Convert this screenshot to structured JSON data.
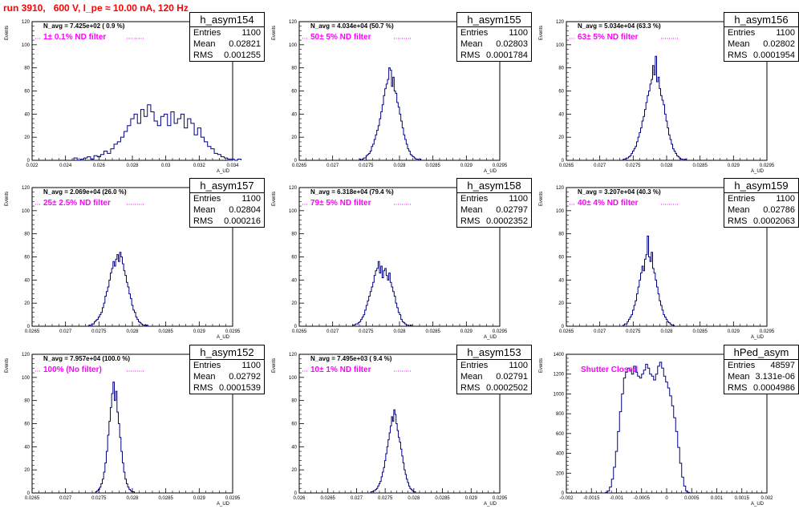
{
  "page_title": "run 3910,   600 V, I_pe ≈ 10.00 nA, 120 Hz",
  "colors": {
    "title": "#ff0000",
    "hist": "#000080",
    "filter_label": "#ff00ff",
    "dotted": "#ff00ff"
  },
  "chart_data": [
    {
      "type": "histogram",
      "name": "h_asym154",
      "stats": {
        "entries_label": "Entries",
        "entries": "1100",
        "mean_label": "Mean",
        "mean": "0.02821",
        "rms_label": "RMS",
        "rms": "0.001255"
      },
      "n_avg_text": "N_avg = 7.425e+02 ( 0.9 %)",
      "filter_text": "1± 0.1% ND filter",
      "xlim": [
        0.022,
        0.034
      ],
      "ylim": [
        0,
        120
      ],
      "xticks": [
        "0.022",
        "0.024",
        "0.026",
        "0.028",
        "0.03",
        "0.032",
        "0.034"
      ],
      "yticks": [
        "0",
        "20",
        "40",
        "60",
        "80",
        "100",
        "120"
      ],
      "xlabel": "A_UD",
      "ylabel": "Events",
      "bins": {
        "start": 0.0245,
        "width": 0.0002,
        "values": [
          2,
          0,
          1,
          2,
          3,
          1,
          4,
          3,
          5,
          8,
          6,
          10,
          14,
          16,
          20,
          25,
          30,
          36,
          40,
          32,
          44,
          38,
          48,
          42,
          34,
          30,
          38,
          40,
          30,
          42,
          32,
          36,
          40,
          28,
          36,
          32,
          22,
          28,
          20,
          16,
          12,
          10,
          6,
          5,
          3,
          2,
          1,
          1,
          0,
          1
        ]
      }
    },
    {
      "type": "histogram",
      "name": "h_asym155",
      "stats": {
        "entries_label": "Entries",
        "entries": "1100",
        "mean_label": "Mean",
        "mean": "0.02803",
        "rms_label": "RMS",
        "rms": "0.0001784"
      },
      "n_avg_text": "N_avg = 4.034e+04 (50.7 %)",
      "filter_text": "50± 5% ND filter",
      "xlim": [
        0.0265,
        0.0295
      ],
      "ylim": [
        0,
        120
      ],
      "xticks": [
        "0.0265",
        "0.027",
        "0.0275",
        "0.028",
        "0.0285",
        "0.029",
        "0.0295"
      ],
      "yticks": [
        "0",
        "20",
        "40",
        "60",
        "80",
        "100",
        "120"
      ],
      "xlabel": "A_UD",
      "ylabel": "Events",
      "bins": {
        "start": 0.0274,
        "width": 2e-05,
        "values": [
          1,
          0,
          1,
          2,
          2,
          4,
          5,
          6,
          8,
          12,
          14,
          18,
          22,
          26,
          30,
          36,
          42,
          48,
          56,
          62,
          66,
          70,
          80,
          78,
          64,
          72,
          60,
          58,
          50,
          46,
          40,
          34,
          28,
          22,
          18,
          14,
          10,
          8,
          5,
          4,
          3,
          2,
          1,
          1,
          0,
          1
        ]
      }
    },
    {
      "type": "histogram",
      "name": "h_asym156",
      "stats": {
        "entries_label": "Entries",
        "entries": "1100",
        "mean_label": "Mean",
        "mean": "0.02802",
        "rms_label": "RMS",
        "rms": "0.0001954"
      },
      "n_avg_text": "N_avg = 5.034e+04 (63.3 %)",
      "filter_text": "63± 5% ND filter",
      "xlim": [
        0.0265,
        0.0295
      ],
      "ylim": [
        0,
        120
      ],
      "xticks": [
        "0.0265",
        "0.027",
        "0.0275",
        "0.028",
        "0.0285",
        "0.029",
        "0.0295"
      ],
      "yticks": [
        "0",
        "20",
        "40",
        "60",
        "80",
        "100",
        "120"
      ],
      "xlabel": "A_UD",
      "ylabel": "Events",
      "bins": {
        "start": 0.02735,
        "width": 2e-05,
        "values": [
          1,
          1,
          2,
          2,
          3,
          4,
          6,
          8,
          10,
          12,
          16,
          20,
          24,
          28,
          34,
          38,
          44,
          50,
          56,
          60,
          66,
          70,
          82,
          74,
          90,
          68,
          72,
          62,
          56,
          52,
          48,
          40,
          34,
          28,
          22,
          18,
          14,
          10,
          8,
          6,
          4,
          3,
          2,
          1,
          1,
          0,
          1
        ]
      }
    },
    {
      "type": "histogram",
      "name": "h_asym157",
      "stats": {
        "entries_label": "Entries",
        "entries": "1100",
        "mean_label": "Mean",
        "mean": "0.02804",
        "rms_label": "RMS",
        "rms": "0.000216"
      },
      "n_avg_text": "N_avg = 2.069e+04 (26.0 %)",
      "filter_text": "25± 2.5% ND filter",
      "xlim": [
        0.0265,
        0.0295
      ],
      "ylim": [
        0,
        120
      ],
      "xticks": [
        "0.0265",
        "0.027",
        "0.0275",
        "0.028",
        "0.0285",
        "0.029",
        "0.0295"
      ],
      "yticks": [
        "0",
        "20",
        "40",
        "60",
        "80",
        "100",
        "120"
      ],
      "xlabel": "A_UD",
      "ylabel": "Events",
      "bins": {
        "start": 0.02735,
        "width": 2e-05,
        "values": [
          1,
          0,
          2,
          2,
          4,
          5,
          6,
          8,
          10,
          12,
          16,
          20,
          26,
          30,
          34,
          40,
          46,
          50,
          56,
          52,
          58,
          62,
          56,
          64,
          60,
          54,
          48,
          44,
          38,
          34,
          28,
          24,
          18,
          14,
          12,
          8,
          6,
          4,
          3,
          2,
          1,
          1,
          0,
          1
        ]
      }
    },
    {
      "type": "histogram",
      "name": "h_asym158",
      "stats": {
        "entries_label": "Entries",
        "entries": "1100",
        "mean_label": "Mean",
        "mean": "0.02797",
        "rms_label": "RMS",
        "rms": "0.0002352"
      },
      "n_avg_text": "N_avg = 6.318e+04 (79.4 %)",
      "filter_text": "79± 5% ND filter",
      "xlim": [
        0.0265,
        0.0295
      ],
      "ylim": [
        0,
        120
      ],
      "xticks": [
        "0.0265",
        "0.027",
        "0.0275",
        "0.028",
        "0.0285",
        "0.029",
        "0.0295"
      ],
      "yticks": [
        "0",
        "20",
        "40",
        "60",
        "80",
        "100",
        "120"
      ],
      "xlabel": "A_UD",
      "ylabel": "Events",
      "bins": {
        "start": 0.0273,
        "width": 2e-05,
        "values": [
          1,
          1,
          2,
          2,
          3,
          4,
          6,
          8,
          10,
          14,
          18,
          22,
          26,
          30,
          34,
          38,
          44,
          48,
          50,
          56,
          46,
          52,
          42,
          48,
          50,
          44,
          40,
          46,
          38,
          34,
          30,
          26,
          20,
          16,
          12,
          10,
          6,
          4,
          3,
          2,
          1,
          1,
          0,
          1
        ]
      }
    },
    {
      "type": "histogram",
      "name": "h_asym159",
      "stats": {
        "entries_label": "Entries",
        "entries": "1100",
        "mean_label": "Mean",
        "mean": "0.02786",
        "rms_label": "RMS",
        "rms": "0.0002063"
      },
      "n_avg_text": "N_avg = 3.207e+04 (40.3 %)",
      "filter_text": "40± 4% ND filter",
      "xlim": [
        0.0265,
        0.0295
      ],
      "ylim": [
        0,
        120
      ],
      "xticks": [
        "0.0265",
        "0.027",
        "0.0275",
        "0.028",
        "0.0285",
        "0.029",
        "0.0295"
      ],
      "yticks": [
        "0",
        "20",
        "40",
        "60",
        "80",
        "100",
        "120"
      ],
      "xlabel": "A_UD",
      "ylabel": "Events",
      "bins": {
        "start": 0.02735,
        "width": 2e-05,
        "values": [
          1,
          2,
          2,
          4,
          6,
          8,
          10,
          14,
          18,
          22,
          28,
          34,
          40,
          46,
          52,
          48,
          58,
          62,
          78,
          60,
          56,
          64,
          50,
          46,
          40,
          34,
          28,
          22,
          18,
          14,
          10,
          8,
          6,
          4,
          3,
          2,
          1,
          1
        ]
      }
    },
    {
      "type": "histogram",
      "name": "h_asym152",
      "stats": {
        "entries_label": "Entries",
        "entries": "1100",
        "mean_label": "Mean",
        "mean": "0.02792",
        "rms_label": "RMS",
        "rms": "0.0001539"
      },
      "n_avg_text": "N_avg = 7.957e+04 (100.0 %)",
      "filter_text": "100% (No filter)",
      "xlim": [
        0.0265,
        0.0295
      ],
      "ylim": [
        0,
        120
      ],
      "xticks": [
        "0.0265",
        "0.027",
        "0.0275",
        "0.028",
        "0.0285",
        "0.029",
        "0.0295"
      ],
      "yticks": [
        "0",
        "20",
        "40",
        "60",
        "80",
        "100",
        "120"
      ],
      "xlabel": "A_UD",
      "ylabel": "Events",
      "bins": {
        "start": 0.02745,
        "width": 2e-05,
        "values": [
          1,
          2,
          3,
          5,
          8,
          12,
          18,
          26,
          36,
          50,
          62,
          74,
          86,
          96,
          80,
          88,
          70,
          60,
          48,
          36,
          26,
          18,
          12,
          8,
          5,
          3,
          2,
          1,
          1
        ]
      }
    },
    {
      "type": "histogram",
      "name": "h_asym153",
      "stats": {
        "entries_label": "Entries",
        "entries": "1100",
        "mean_label": "Mean",
        "mean": "0.02791",
        "rms_label": "RMS",
        "rms": "0.0002502"
      },
      "n_avg_text": "N_avg = 7.495e+03 ( 9.4 %)",
      "filter_text": "10± 1% ND filter",
      "xlim": [
        0.026,
        0.0295
      ],
      "ylim": [
        0,
        120
      ],
      "xticks": [
        "0.026",
        "0.0265",
        "0.027",
        "0.0275",
        "0.028",
        "0.0285",
        "0.029",
        "0.0295"
      ],
      "yticks": [
        "0",
        "20",
        "40",
        "60",
        "80",
        "100",
        "120"
      ],
      "xlabel": "A_UD",
      "ylabel": "Events",
      "bins": {
        "start": 0.02725,
        "width": 2e-05,
        "values": [
          1,
          1,
          2,
          2,
          3,
          4,
          6,
          8,
          10,
          14,
          18,
          22,
          28,
          34,
          40,
          46,
          52,
          58,
          66,
          62,
          72,
          68,
          60,
          54,
          48,
          44,
          38,
          32,
          26,
          20,
          16,
          12,
          9,
          6,
          4,
          3,
          2,
          1,
          1
        ]
      }
    },
    {
      "type": "histogram",
      "name": "hPed_asym",
      "stats": {
        "entries_label": "Entries",
        "entries": "48597",
        "mean_label": "Mean",
        "mean": "3.131e-06",
        "rms_label": "RMS",
        "rms": "0.0004986"
      },
      "n_avg_text": "",
      "filter_text": "Shutter Closed",
      "xlim": [
        -0.002,
        0.002
      ],
      "ylim": [
        0,
        1400
      ],
      "xticks": [
        "-0.002",
        "-0.0015",
        "-0.001",
        "-0.0005",
        "0",
        "0.0005",
        "0.001",
        "0.0015",
        "0.002"
      ],
      "yticks": [
        "0",
        "200",
        "400",
        "600",
        "800",
        "1000",
        "1200",
        "1400"
      ],
      "xlabel": "A_UD",
      "ylabel": "Events",
      "bins": {
        "start": -0.00122,
        "width": 4e-05,
        "values": [
          5,
          20,
          60,
          140,
          260,
          420,
          620,
          820,
          1000,
          1160,
          1220,
          1260,
          1240,
          1200,
          1280,
          1220,
          1180,
          1160,
          1200,
          1240,
          1300,
          1260,
          1200,
          1180,
          1140,
          1200,
          1280,
          1320,
          1260,
          1180,
          1120,
          1060,
          980,
          880,
          760,
          620,
          460,
          300,
          160,
          70,
          20,
          5
        ]
      }
    }
  ]
}
